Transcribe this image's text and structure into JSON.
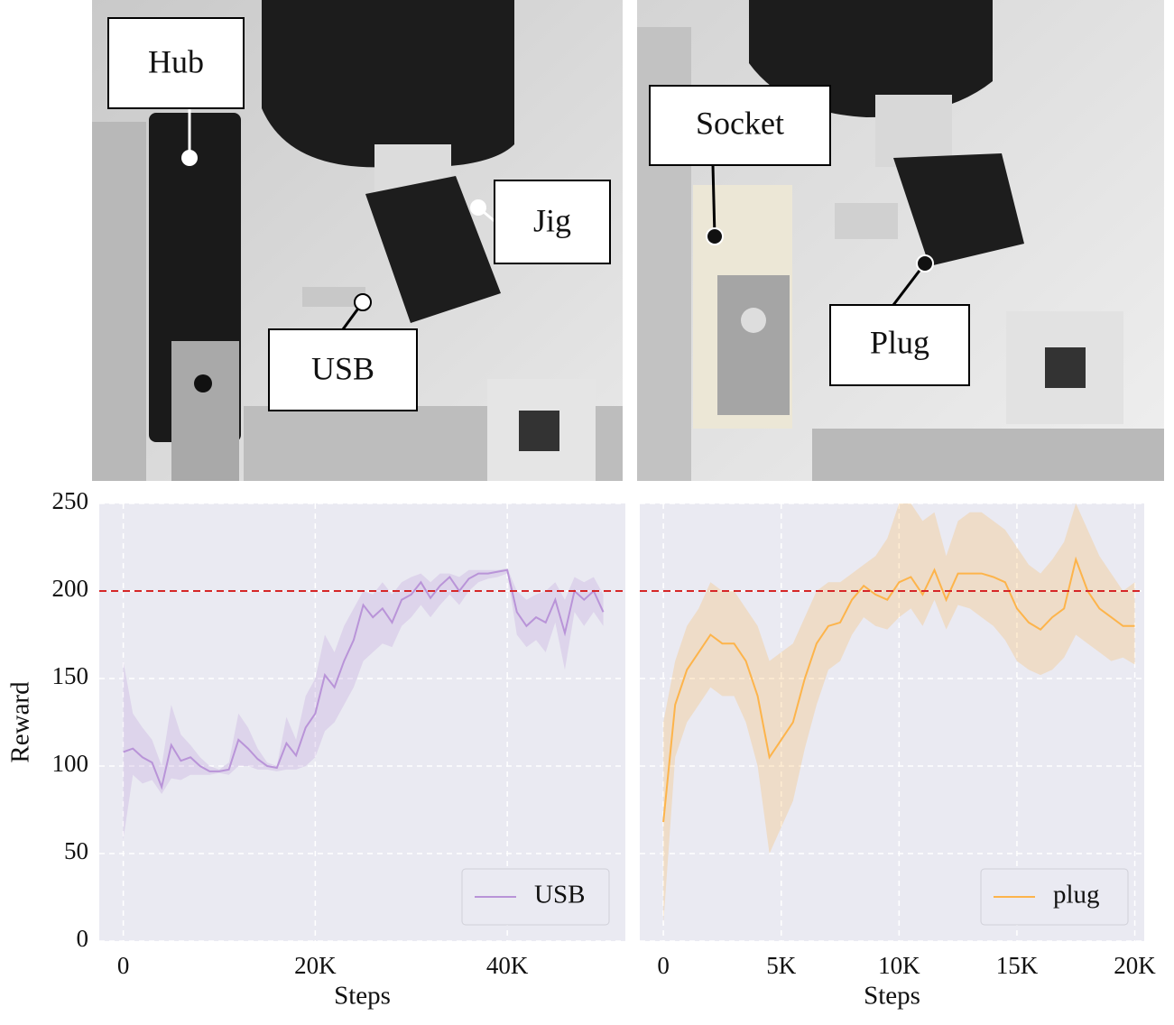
{
  "photos": {
    "left_labels": [
      "Hub",
      "Jig",
      "USB"
    ],
    "right_labels": [
      "Socket",
      "Plug"
    ]
  },
  "chart_data": [
    {
      "type": "line",
      "ylabel": "Reward",
      "xlabel": "Steps",
      "xlim": [
        -2500,
        52300
      ],
      "ylim": [
        0,
        250
      ],
      "xticks": [
        0,
        {
          "value": 20000,
          "label": "20K"
        },
        {
          "value": 40000,
          "label": "40K"
        }
      ],
      "yticks": [
        0,
        50,
        100,
        150,
        200,
        250
      ],
      "show_ytick_labels": true,
      "grid": true,
      "legend": "lower right",
      "reference_line": 200,
      "reference_color": "#d62728",
      "x": [
        0,
        1000,
        2000,
        3000,
        4000,
        5000,
        6000,
        7000,
        8000,
        9000,
        10000,
        11000,
        12000,
        13000,
        14000,
        15000,
        16000,
        17000,
        18000,
        19000,
        20000,
        21000,
        22000,
        23000,
        24000,
        25000,
        26000,
        27000,
        28000,
        29000,
        30000,
        31000,
        32000,
        33000,
        34000,
        35000,
        36000,
        37000,
        38000,
        39000,
        40000,
        41000,
        42000,
        43000,
        44000,
        45000,
        46000,
        47000,
        48000,
        49000,
        50000
      ],
      "series": [
        {
          "name": "USB",
          "color": "#b994d8",
          "values": [
            108,
            110,
            105,
            102,
            88,
            112,
            103,
            105,
            100,
            97,
            97,
            98,
            115,
            110,
            104,
            100,
            99,
            113,
            106,
            122,
            130,
            152,
            145,
            160,
            172,
            192,
            185,
            190,
            182,
            195,
            198,
            205,
            196,
            203,
            208,
            200,
            207,
            210,
            210,
            211,
            212,
            188,
            180,
            185,
            182,
            195,
            176,
            200,
            195,
            200,
            188
          ],
          "lower": [
            58,
            95,
            90,
            92,
            84,
            93,
            92,
            95,
            95,
            95,
            96,
            95,
            100,
            100,
            98,
            98,
            97,
            98,
            98,
            100,
            105,
            120,
            125,
            135,
            145,
            160,
            165,
            170,
            168,
            180,
            185,
            192,
            185,
            192,
            198,
            192,
            200,
            205,
            207,
            208,
            210,
            175,
            168,
            172,
            165,
            182,
            155,
            188,
            180,
            188,
            180
          ],
          "upper": [
            160,
            130,
            122,
            115,
            100,
            135,
            118,
            112,
            105,
            100,
            98,
            102,
            130,
            122,
            110,
            102,
            100,
            128,
            115,
            140,
            150,
            175,
            165,
            180,
            190,
            200,
            198,
            205,
            198,
            205,
            208,
            210,
            205,
            210,
            210,
            208,
            212,
            212,
            212,
            212,
            213,
            200,
            195,
            198,
            200,
            205,
            195,
            208,
            205,
            208,
            198
          ]
        }
      ]
    },
    {
      "type": "line",
      "xlabel": "Steps",
      "xlim": [
        -1000,
        20400
      ],
      "ylim": [
        0,
        250
      ],
      "xticks": [
        0,
        {
          "value": 5000,
          "label": "5K"
        },
        {
          "value": 10000,
          "label": "10K"
        },
        {
          "value": 15000,
          "label": "15K"
        },
        {
          "value": 20000,
          "label": "20K"
        }
      ],
      "yticks": [
        0,
        50,
        100,
        150,
        200,
        250
      ],
      "show_ytick_labels": false,
      "grid": true,
      "legend": "lower right",
      "reference_line": 200,
      "reference_color": "#d62728",
      "x": [
        0,
        500,
        1000,
        1500,
        2000,
        2500,
        3000,
        3500,
        4000,
        4500,
        5000,
        5500,
        6000,
        6500,
        7000,
        7500,
        8000,
        8500,
        9000,
        9500,
        10000,
        10500,
        11000,
        11500,
        12000,
        12500,
        13000,
        13500,
        14000,
        14500,
        15000,
        15500,
        16000,
        16500,
        17000,
        17500,
        18000,
        18500,
        19000,
        19500,
        20000
      ],
      "series": [
        {
          "name": "plug",
          "color": "#fdb44b",
          "values": [
            68,
            135,
            155,
            165,
            175,
            170,
            170,
            160,
            140,
            105,
            115,
            125,
            150,
            170,
            180,
            182,
            195,
            203,
            198,
            195,
            205,
            208,
            198,
            212,
            195,
            210,
            210,
            210,
            208,
            205,
            190,
            182,
            178,
            185,
            190,
            218,
            200,
            190,
            185,
            180,
            180
          ],
          "lower": [
            10,
            105,
            125,
            135,
            145,
            140,
            140,
            125,
            100,
            50,
            65,
            80,
            110,
            135,
            155,
            160,
            175,
            185,
            180,
            178,
            185,
            190,
            180,
            195,
            178,
            192,
            190,
            185,
            180,
            172,
            160,
            155,
            152,
            155,
            162,
            175,
            170,
            165,
            160,
            162,
            158
          ],
          "upper": [
            125,
            160,
            180,
            190,
            205,
            200,
            200,
            190,
            180,
            160,
            165,
            170,
            185,
            200,
            205,
            205,
            210,
            215,
            220,
            230,
            250,
            250,
            240,
            245,
            220,
            240,
            245,
            245,
            240,
            235,
            225,
            215,
            210,
            218,
            228,
            250,
            235,
            220,
            210,
            200,
            205
          ]
        }
      ]
    }
  ]
}
